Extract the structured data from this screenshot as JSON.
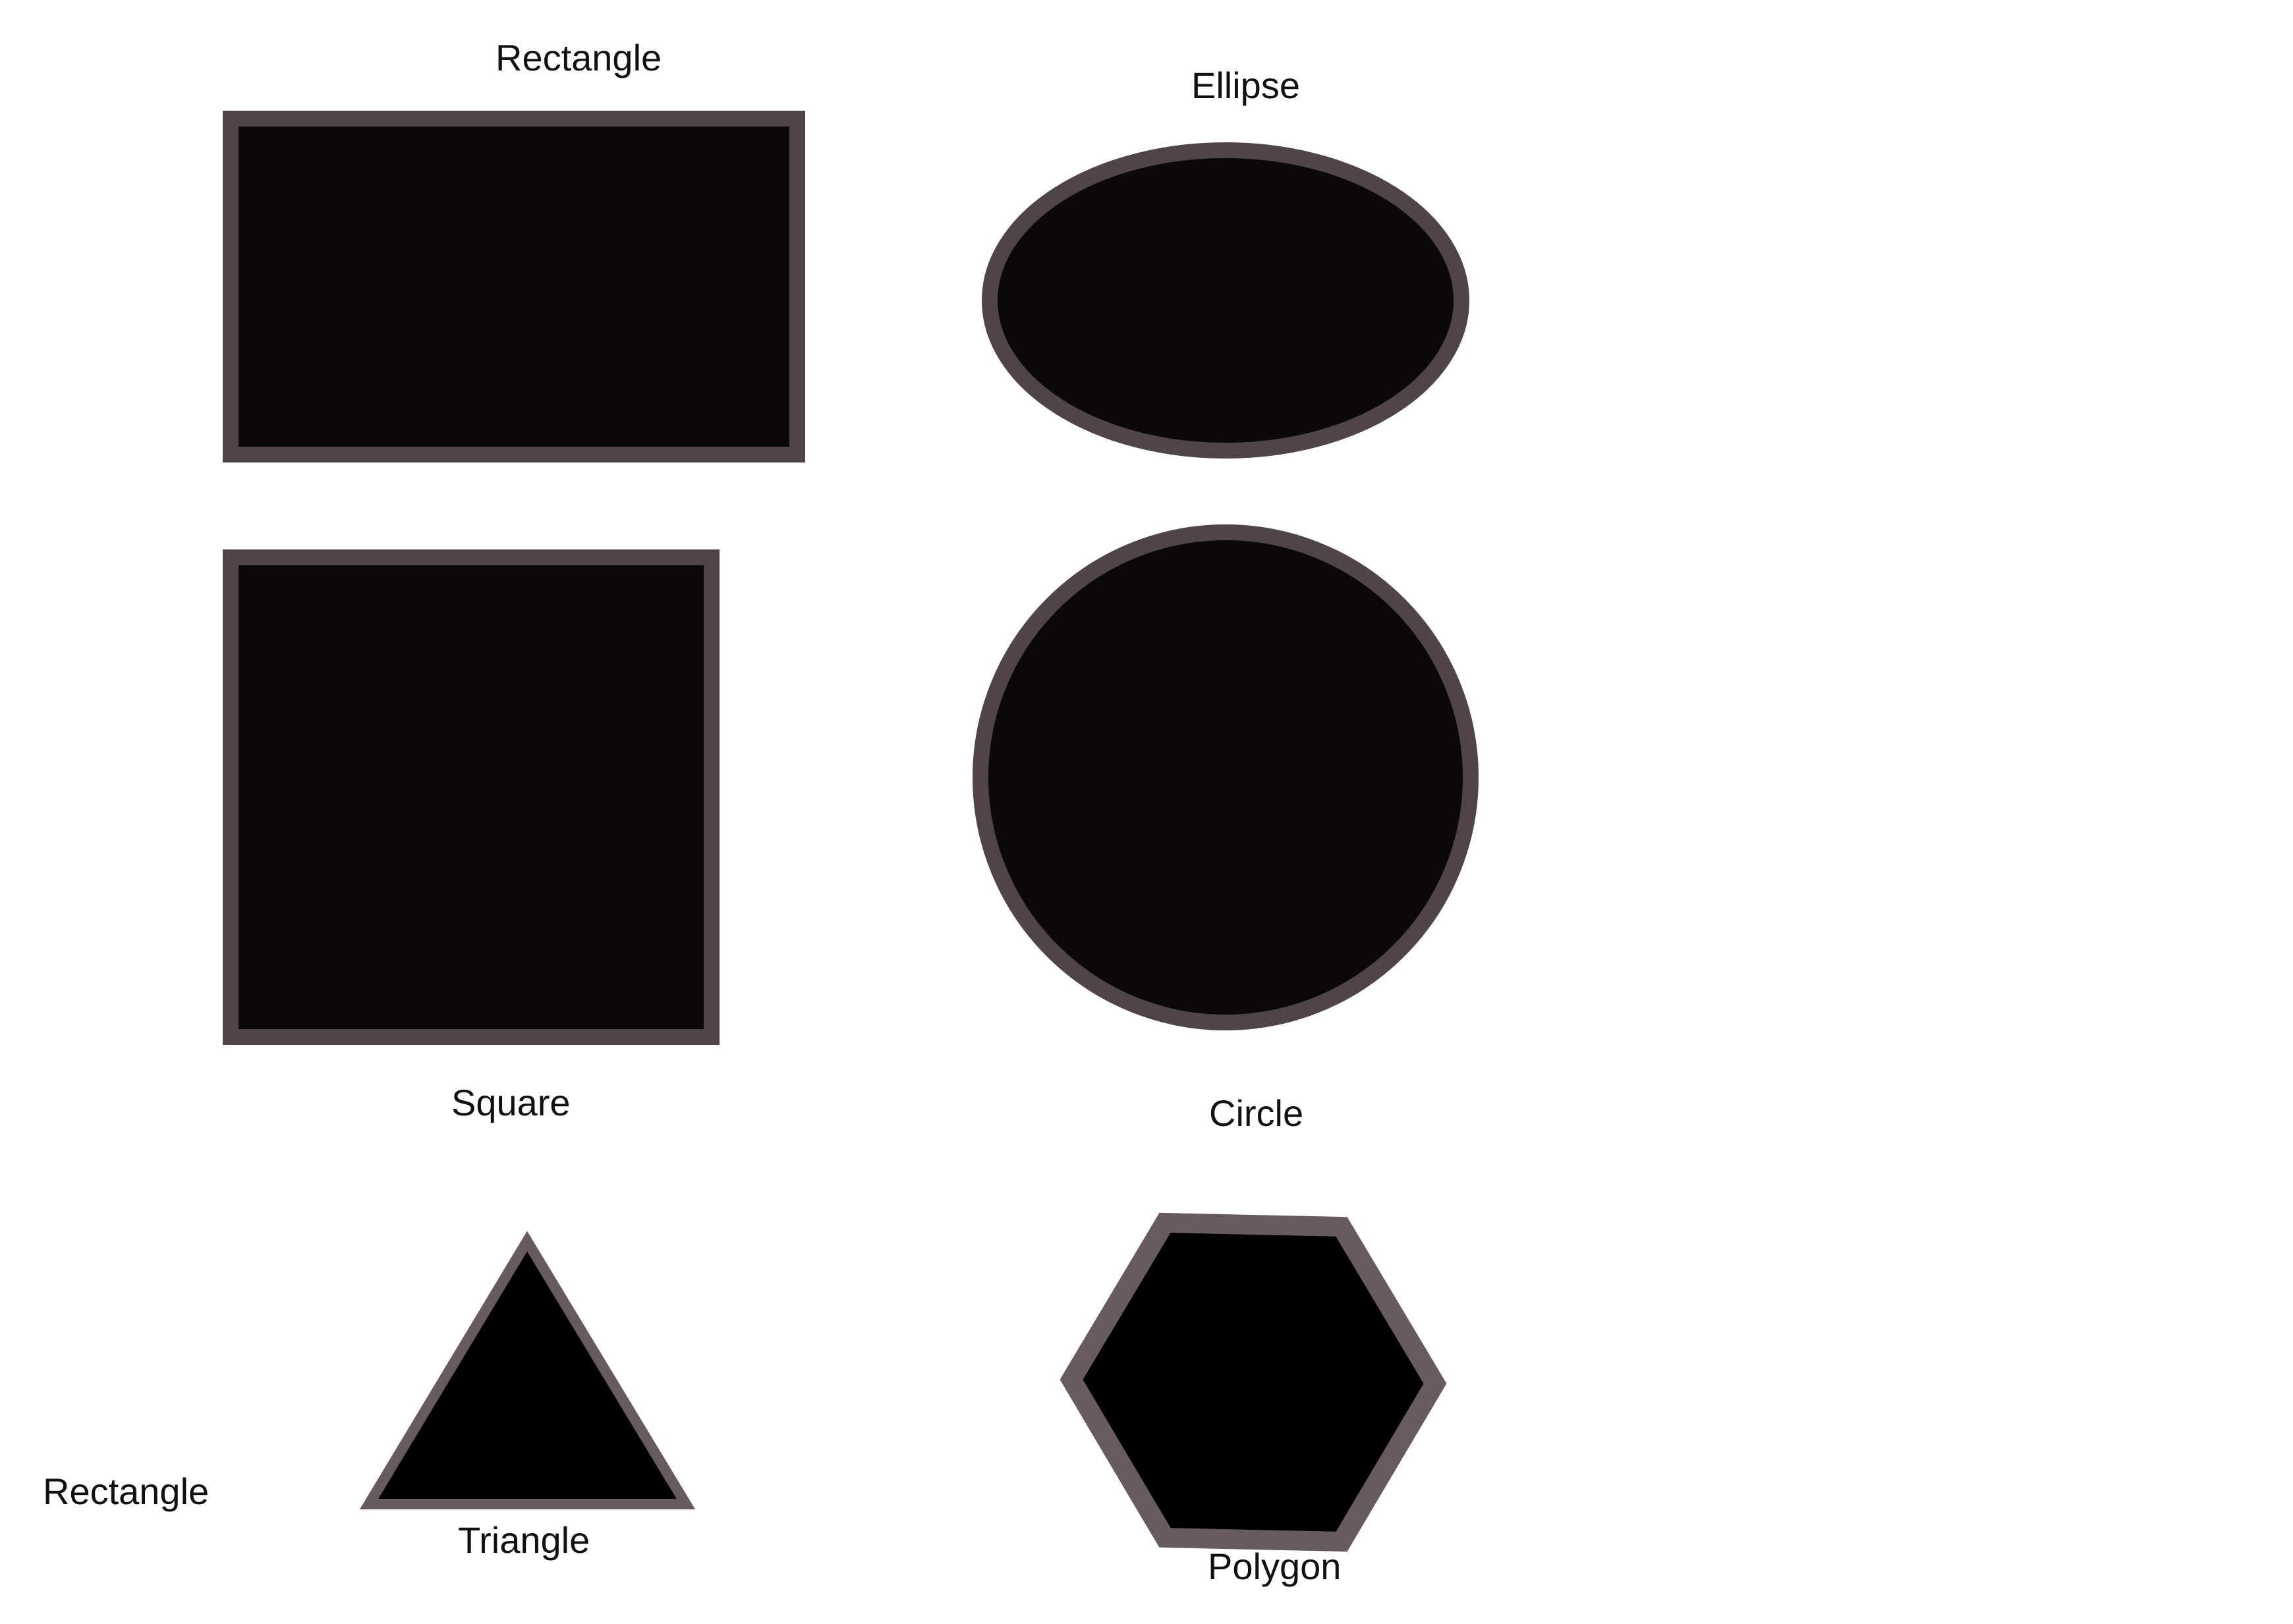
{
  "labels": {
    "rectangle": "Rectangle",
    "ellipse": "Ellipse",
    "square": "Square",
    "circle": "Circle",
    "triangle": "Triangle",
    "polygon": "Polygon",
    "rectangle_bottom_left": "Rectangle"
  },
  "colors": {
    "background": "#ffffff",
    "shape_fill": "#0a0809",
    "shape_fill_dark": "#000000",
    "shape_stroke": "#4f4548",
    "shape_stroke_light": "#685b5f",
    "text": "#111111"
  }
}
